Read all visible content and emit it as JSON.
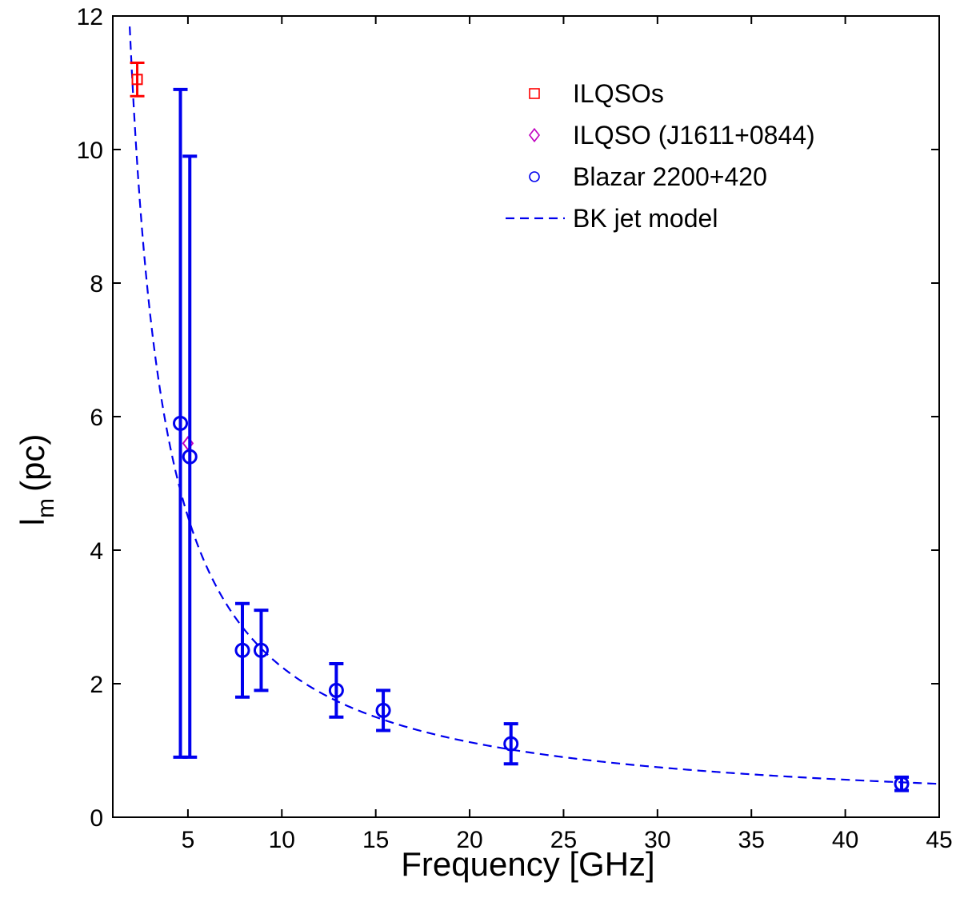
{
  "chart_data": {
    "type": "scatter",
    "xlabel": "Frequency [GHz]",
    "ylabel_main": "l",
    "ylabel_sub": "m",
    "ylabel_unit": "(pc)",
    "xlim": [
      1,
      45
    ],
    "ylim": [
      0,
      12
    ],
    "xticks": [
      5,
      10,
      15,
      20,
      25,
      30,
      35,
      40,
      45
    ],
    "yticks": [
      0,
      2,
      4,
      6,
      8,
      10,
      12
    ],
    "grid": false,
    "legend_position": "top-right",
    "colors": {
      "ilqsos": "#ff0000",
      "ilqso_j1611": "#c000c0",
      "blazar": "#0000ee",
      "model": "#0000ee",
      "axis": "#000000"
    },
    "series": [
      {
        "name": "ILQSOs",
        "marker": "square",
        "points": [
          {
            "x": 2.3,
            "y": 11.05,
            "err_low": 0.25,
            "err_high": 0.25
          }
        ]
      },
      {
        "name": "ILQSO (J1611+0844)",
        "marker": "diamond",
        "points": [
          {
            "x": 5.0,
            "y": 5.6
          }
        ]
      },
      {
        "name": "Blazar 2200+420",
        "marker": "circle",
        "points": [
          {
            "x": 4.6,
            "y": 5.9,
            "err_low": 5.0,
            "err_high": 5.0
          },
          {
            "x": 5.1,
            "y": 5.4,
            "err_low": 4.5,
            "err_high": 4.5
          },
          {
            "x": 7.9,
            "y": 2.5,
            "err_low": 0.7,
            "err_high": 0.7
          },
          {
            "x": 8.9,
            "y": 2.5,
            "err_low": 0.6,
            "err_high": 0.6
          },
          {
            "x": 12.9,
            "y": 1.9,
            "err_low": 0.4,
            "err_high": 0.4
          },
          {
            "x": 15.4,
            "y": 1.6,
            "err_low": 0.3,
            "err_high": 0.3
          },
          {
            "x": 22.2,
            "y": 1.1,
            "err_low": 0.3,
            "err_high": 0.3
          },
          {
            "x": 43.0,
            "y": 0.5,
            "err_low": 0.1,
            "err_high": 0.1
          }
        ]
      },
      {
        "name": "BK jet model",
        "style": "dashed",
        "function": "y = 22.5 / x",
        "x_range": [
          1.9,
          45
        ]
      }
    ]
  }
}
